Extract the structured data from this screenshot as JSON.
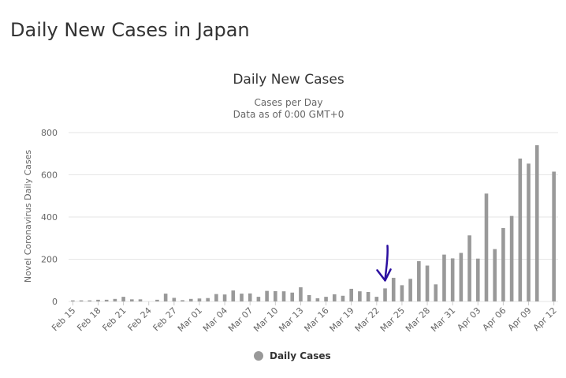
{
  "page": {
    "title": "Daily New Cases in Japan"
  },
  "colors": {
    "bar": "#999999",
    "grid": "#e6e6e6",
    "axis_text": "#666666",
    "title_text": "#333333",
    "annotation_arrow": "#2b0fa0"
  },
  "chart_data": {
    "type": "bar",
    "title": "Daily New Cases",
    "subtitle_lines": [
      "Cases per Day",
      "Data as of 0:00 GMT+0"
    ],
    "xlabel": "",
    "ylabel": "Novel Coronavirus Daily Cases",
    "ylim": [
      0,
      800
    ],
    "yticks": [
      0,
      200,
      400,
      600,
      800
    ],
    "grid": true,
    "legend": {
      "position": "bottom-center",
      "entries": [
        "Daily Cases"
      ]
    },
    "xtick_labels": [
      "Feb 15",
      "Feb 18",
      "Feb 21",
      "Feb 24",
      "Feb 27",
      "Mar 01",
      "Mar 04",
      "Mar 07",
      "Mar 10",
      "Mar 13",
      "Mar 16",
      "Mar 19",
      "Mar 22",
      "Mar 25",
      "Mar 28",
      "Mar 31",
      "Apr 03",
      "Apr 06",
      "Apr 09",
      "Apr 12"
    ],
    "categories": [
      "Feb 15",
      "Feb 16",
      "Feb 17",
      "Feb 18",
      "Feb 19",
      "Feb 20",
      "Feb 21",
      "Feb 22",
      "Feb 23",
      "Feb 24",
      "Feb 25",
      "Feb 26",
      "Feb 27",
      "Feb 28",
      "Feb 29",
      "Mar 01",
      "Mar 02",
      "Mar 03",
      "Mar 04",
      "Mar 05",
      "Mar 06",
      "Mar 07",
      "Mar 08",
      "Mar 09",
      "Mar 10",
      "Mar 11",
      "Mar 12",
      "Mar 13",
      "Mar 14",
      "Mar 15",
      "Mar 16",
      "Mar 17",
      "Mar 18",
      "Mar 19",
      "Mar 20",
      "Mar 21",
      "Mar 22",
      "Mar 23",
      "Mar 24",
      "Mar 25",
      "Mar 26",
      "Mar 27",
      "Mar 28",
      "Mar 29",
      "Mar 30",
      "Mar 31",
      "Apr 01",
      "Apr 02",
      "Apr 03",
      "Apr 04",
      "Apr 05",
      "Apr 06",
      "Apr 07",
      "Apr 08",
      "Apr 09",
      "Apr 10",
      "Apr 11",
      "Apr 12"
    ],
    "series": [
      {
        "name": "Daily Cases",
        "values": [
          5,
          5,
          5,
          8,
          8,
          12,
          22,
          10,
          10,
          0,
          8,
          37,
          17,
          6,
          12,
          14,
          16,
          35,
          33,
          52,
          37,
          38,
          22,
          50,
          49,
          48,
          42,
          67,
          30,
          15,
          22,
          34,
          27,
          60,
          48,
          45,
          22,
          62,
          112,
          77,
          107,
          191,
          170,
          81,
          222,
          204,
          230,
          313,
          203,
          511,
          248,
          348,
          405,
          677,
          653,
          740,
          0,
          615
        ]
      }
    ],
    "annotations": [
      {
        "type": "arrow",
        "points_to": "Mar 23"
      }
    ]
  },
  "legend": {
    "label": "Daily Cases"
  }
}
